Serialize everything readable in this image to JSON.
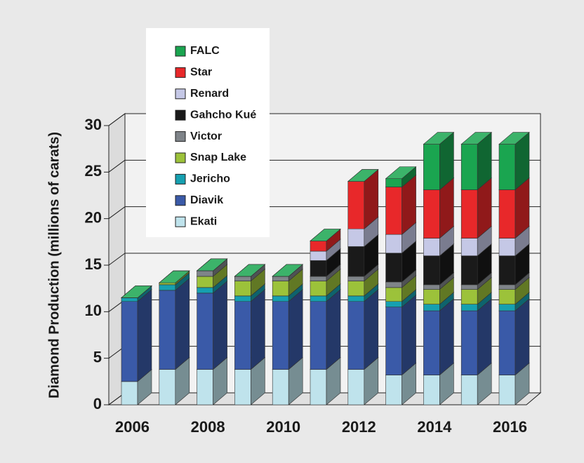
{
  "chart_data": {
    "type": "bar3d_stacked",
    "ylabel": "Diamond Production (millions of carats)",
    "categories": [
      "2006",
      null,
      "2008",
      null,
      "2010",
      null,
      "2012",
      null,
      "2014",
      null,
      "2016"
    ],
    "ylim": [
      0,
      30
    ],
    "yticks": [
      0,
      5,
      10,
      15,
      20,
      25,
      30
    ],
    "grid": true,
    "series": [
      {
        "name": "Ekati",
        "color": "#bfe3ec",
        "values": [
          2.5,
          3.8,
          3.8,
          3.8,
          3.8,
          3.8,
          3.8,
          3.2,
          3.2,
          3.2,
          3.2
        ]
      },
      {
        "name": "Diavik",
        "color": "#3a5aa8",
        "values": [
          8.6,
          8.5,
          8.2,
          7.3,
          7.3,
          7.3,
          7.3,
          7.3,
          6.9,
          6.9,
          6.9
        ]
      },
      {
        "name": "Jericho",
        "color": "#16a0b0",
        "values": [
          0.4,
          0.6,
          0.6,
          0.6,
          0.6,
          0.6,
          0.6,
          0.6,
          0.7,
          0.7,
          0.7
        ]
      },
      {
        "name": "Snap Lake",
        "color": "#9cc23a",
        "values": [
          0,
          0.2,
          1.2,
          1.6,
          1.6,
          1.6,
          1.6,
          1.5,
          1.6,
          1.6,
          1.6
        ]
      },
      {
        "name": "Victor",
        "color": "#7f8489",
        "values": [
          0,
          0,
          0.6,
          0.5,
          0.5,
          0.5,
          0.5,
          0.6,
          0.5,
          0.5,
          0.5
        ]
      },
      {
        "name": "Gahcho Kué",
        "color": "#1a1a1a",
        "values": [
          0,
          0,
          0,
          0,
          0,
          1.7,
          3.2,
          3.1,
          3.1,
          3.1,
          3.1
        ]
      },
      {
        "name": "Renard",
        "color": "#c5c8e6",
        "values": [
          0,
          0,
          0,
          0,
          0,
          1.0,
          1.9,
          2.0,
          1.9,
          1.9,
          1.9
        ]
      },
      {
        "name": "Star",
        "color": "#e8282a",
        "values": [
          0,
          0,
          0,
          0,
          0,
          1.1,
          5.1,
          5.1,
          5.2,
          5.2,
          5.2
        ]
      },
      {
        "name": "FALC",
        "color": "#1aa550",
        "values": [
          0,
          0,
          0,
          0,
          0,
          0,
          0,
          0.9,
          4.9,
          4.9,
          4.9
        ]
      }
    ]
  }
}
